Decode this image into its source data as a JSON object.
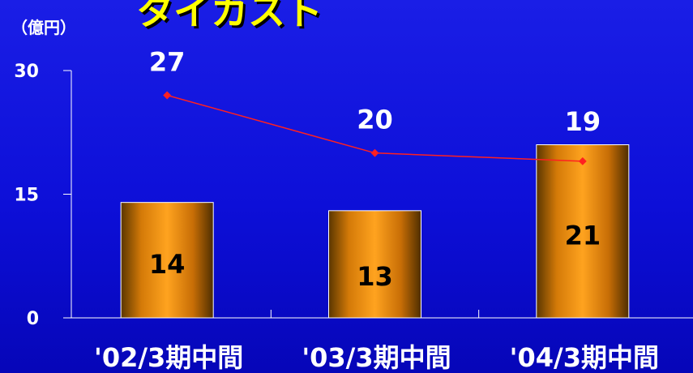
{
  "header": {
    "title": "タイカスト",
    "unit_label": "（億円）"
  },
  "colors": {
    "background": "#1111dd",
    "bar_light": "#ff9a1a",
    "bar_dark": "#5a3600",
    "line": "#ff2020",
    "text": "#ffffff",
    "title": "#ffff00"
  },
  "chart_data": {
    "type": "bar",
    "categories": [
      "'02/3期中間",
      "'03/3期中間",
      "'04/3期中間"
    ],
    "series": [
      {
        "type": "bar",
        "values": [
          14,
          13,
          21
        ]
      },
      {
        "type": "line",
        "values": [
          27,
          20,
          19
        ]
      }
    ],
    "yticks": [
      "0",
      "15",
      "30"
    ],
    "ylim": [
      0,
      30
    ],
    "grid": false,
    "legend": "none"
  }
}
